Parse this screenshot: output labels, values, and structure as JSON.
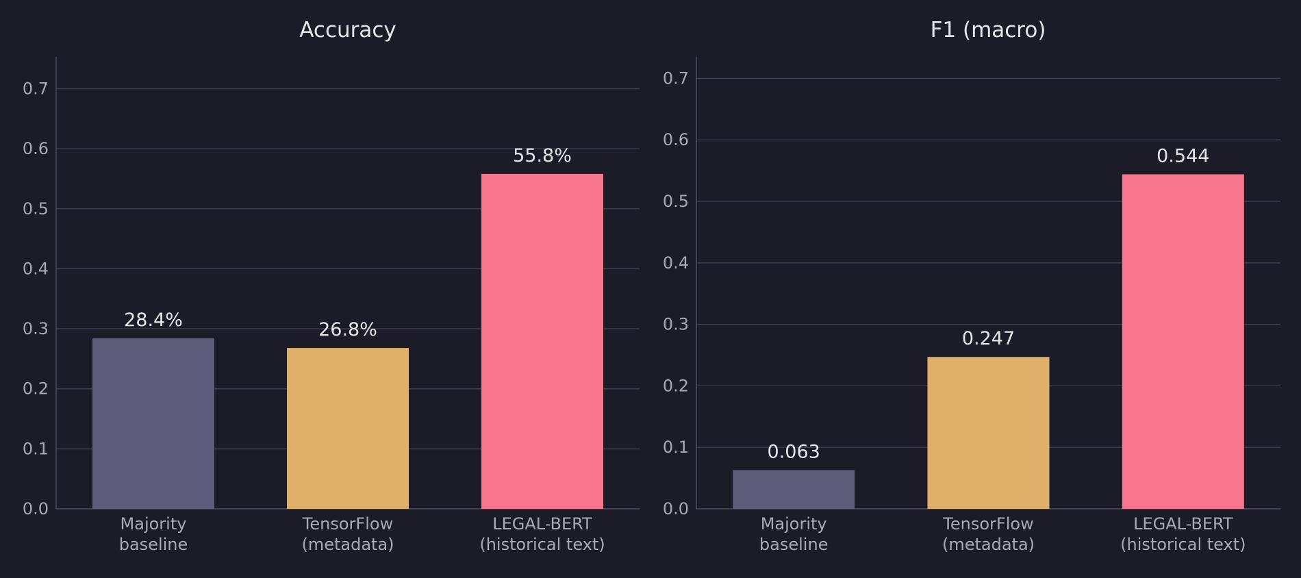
{
  "chart_data": [
    {
      "type": "bar",
      "title": "Accuracy",
      "categories": [
        [
          "Majority",
          "baseline"
        ],
        [
          "TensorFlow",
          "(metadata)"
        ],
        [
          "LEGAL-BERT",
          "(historical text)"
        ]
      ],
      "values": [
        0.284,
        0.268,
        0.558
      ],
      "data_labels": [
        "28.4%",
        "26.8%",
        "55.8%"
      ],
      "ylim": [
        0,
        0.753
      ],
      "yticks": [
        0.0,
        0.1,
        0.2,
        0.3,
        0.4,
        0.5,
        0.6,
        0.7
      ],
      "ytick_labels": [
        "0.0",
        "0.1",
        "0.2",
        "0.3",
        "0.4",
        "0.5",
        "0.6",
        "0.7"
      ],
      "xlabel": "",
      "ylabel": "",
      "grid": true,
      "colors": [
        "#5d5c7a",
        "#e0af69",
        "#f7768e"
      ]
    },
    {
      "type": "bar",
      "title": "F1 (macro)",
      "categories": [
        [
          "Majority",
          "baseline"
        ],
        [
          "TensorFlow",
          "(metadata)"
        ],
        [
          "LEGAL-BERT",
          "(historical text)"
        ]
      ],
      "values": [
        0.063,
        0.247,
        0.544
      ],
      "data_labels": [
        "0.063",
        "0.247",
        "0.544"
      ],
      "ylim": [
        0,
        0.735
      ],
      "yticks": [
        0.0,
        0.1,
        0.2,
        0.3,
        0.4,
        0.5,
        0.6,
        0.7
      ],
      "ytick_labels": [
        "0.0",
        "0.1",
        "0.2",
        "0.3",
        "0.4",
        "0.5",
        "0.6",
        "0.7"
      ],
      "xlabel": "",
      "ylabel": "",
      "grid": true,
      "colors": [
        "#5d5c7a",
        "#e0af69",
        "#f7768e"
      ]
    }
  ]
}
